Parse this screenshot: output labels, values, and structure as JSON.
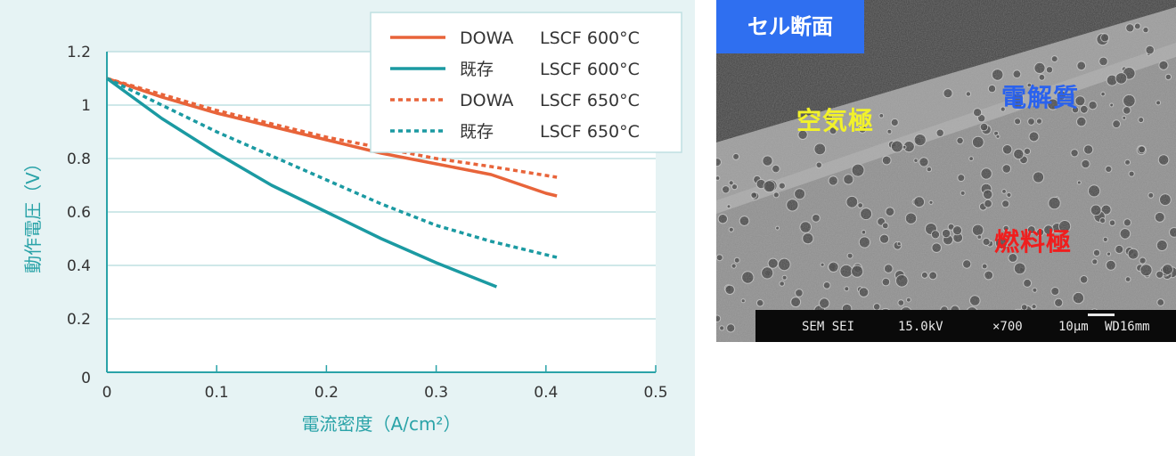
{
  "chart_data": {
    "type": "line",
    "xlabel": "電流密度（A/cm²）",
    "ylabel": "動作電圧（V）",
    "xlim": [
      0,
      0.5
    ],
    "ylim": [
      0,
      1.2
    ],
    "xticks": [
      "0",
      "0.1",
      "0.2",
      "0.3",
      "0.4",
      "0.5"
    ],
    "yticks": [
      "0",
      "0.2",
      "0.4",
      "0.6",
      "0.8",
      "1",
      "1.2"
    ],
    "grid": "horizontal",
    "legend_position": "top-right",
    "series": [
      {
        "name": "DOWA LSCF 600°C",
        "label_left": "DOWA",
        "label_right": "LSCF 600°C",
        "color": "#e8643a",
        "style": "solid",
        "x": [
          0,
          0.05,
          0.1,
          0.15,
          0.2,
          0.25,
          0.3,
          0.35,
          0.4,
          0.41
        ],
        "y": [
          1.1,
          1.03,
          0.97,
          0.92,
          0.87,
          0.82,
          0.78,
          0.74,
          0.67,
          0.66
        ]
      },
      {
        "name": "既存 LSCF 600°C",
        "label_left": "既存",
        "label_right": "LSCF 600°C",
        "color": "#1b9aa2",
        "style": "solid",
        "x": [
          0,
          0.05,
          0.1,
          0.15,
          0.2,
          0.25,
          0.3,
          0.355
        ],
        "y": [
          1.1,
          0.95,
          0.82,
          0.7,
          0.6,
          0.5,
          0.41,
          0.32
        ]
      },
      {
        "name": "DOWA LSCF 650°C",
        "label_left": "DOWA",
        "label_right": "LSCF 650°C",
        "color": "#e8643a",
        "style": "dotted",
        "x": [
          0,
          0.05,
          0.1,
          0.15,
          0.2,
          0.25,
          0.3,
          0.35,
          0.41
        ],
        "y": [
          1.1,
          1.04,
          0.98,
          0.93,
          0.88,
          0.84,
          0.8,
          0.77,
          0.73
        ]
      },
      {
        "name": "既存 LSCF 650°C",
        "label_left": "既存",
        "label_right": "LSCF 650°C",
        "color": "#1b9aa2",
        "style": "dotted",
        "x": [
          0,
          0.05,
          0.1,
          0.15,
          0.2,
          0.25,
          0.3,
          0.35,
          0.41
        ],
        "y": [
          1.1,
          1.0,
          0.9,
          0.81,
          0.72,
          0.63,
          0.55,
          0.49,
          0.43
        ]
      }
    ]
  },
  "sem_image": {
    "title": "セル断面",
    "labels": {
      "air": "空気極",
      "electrolyte": "電解質",
      "fuel": "燃料極"
    },
    "label_colors": {
      "air": "#f2f22a",
      "electrolyte": "#2a62ee",
      "fuel": "#f01e1e"
    },
    "info_bar": {
      "mode": "SEM SEI",
      "voltage": "15.0kV",
      "magnification": "×700",
      "scale": "10μm",
      "wd": "WD16mm"
    }
  }
}
